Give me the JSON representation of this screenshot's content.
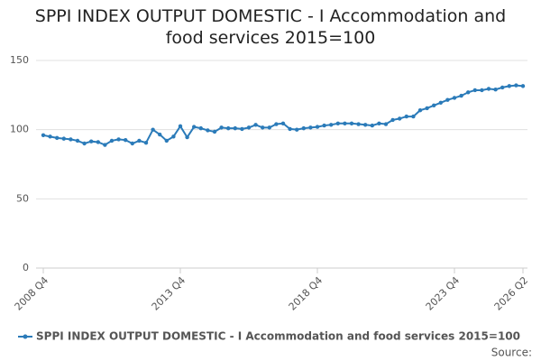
{
  "chart_data": {
    "type": "line",
    "title": "SPPI INDEX OUTPUT DOMESTIC - I Accommodation and food services 2015=100",
    "categories": [
      "2008 Q4",
      null,
      null,
      null,
      null,
      null,
      null,
      null,
      null,
      null,
      null,
      null,
      null,
      null,
      null,
      null,
      null,
      null,
      null,
      null,
      "2013 Q4",
      null,
      null,
      null,
      null,
      null,
      null,
      null,
      null,
      null,
      null,
      null,
      null,
      null,
      null,
      null,
      null,
      null,
      null,
      null,
      "2018 Q4",
      null,
      null,
      null,
      null,
      null,
      null,
      null,
      null,
      null,
      null,
      null,
      null,
      null,
      null,
      null,
      null,
      null,
      null,
      null,
      "2023 Q4",
      null,
      null,
      null,
      null,
      null,
      null,
      null,
      null,
      null,
      "2026 Q2"
    ],
    "series": [
      {
        "name": "SPPI INDEX OUTPUT DOMESTIC - I Accommodation and food services 2015=100",
        "color": "#2b7bb9",
        "values": [
          96,
          95,
          94,
          93.5,
          93,
          92,
          90,
          91.5,
          91,
          89,
          92,
          93,
          92.5,
          90,
          92,
          90.5,
          100,
          96.5,
          92,
          95,
          102.5,
          94.5,
          102,
          101,
          99.5,
          98.5,
          101.5,
          101,
          101,
          100.5,
          101.5,
          103.5,
          101.5,
          101.5,
          104,
          104.5,
          100.5,
          100,
          101,
          101.5,
          102,
          103,
          103.5,
          104.5,
          104.5,
          104.5,
          104,
          103.5,
          103,
          104.5,
          104,
          107,
          108,
          109.5,
          109.5,
          114,
          115.5,
          117.5,
          119.5,
          121.5,
          123,
          124.5,
          127,
          128.5,
          128.5,
          129.5,
          129,
          130.5,
          131.5,
          132,
          131.5
        ]
      }
    ],
    "ylim": [
      0,
      150
    ],
    "yticks": [
      0,
      50,
      100,
      150
    ],
    "grid": true,
    "source_label": "Source:"
  }
}
